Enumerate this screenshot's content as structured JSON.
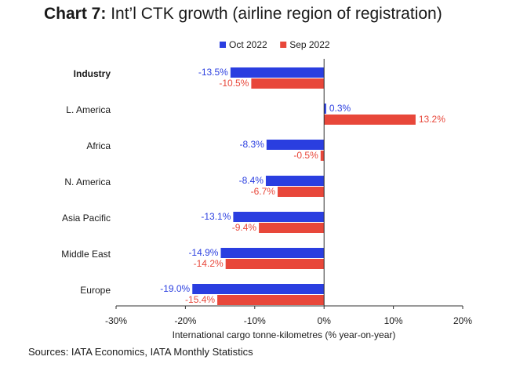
{
  "title_bold": "Chart 7:",
  "title_rest": "Int’l CTK growth (airline region of registration)",
  "source": "Sources: IATA Economics, IATA Monthly Statistics",
  "chart_data": {
    "type": "bar",
    "orientation": "horizontal",
    "categories": [
      "Industry",
      "L. America",
      "Africa",
      "N. America",
      "Asia Pacific",
      "Middle East",
      "Europe"
    ],
    "bold_categories": [
      "Industry"
    ],
    "series": [
      {
        "name": "Oct 2022",
        "color": "#2a3ee0",
        "values": [
          -13.5,
          0.3,
          -8.3,
          -8.4,
          -13.1,
          -14.9,
          -19.0
        ],
        "labels": [
          "-13.5%",
          "0.3%",
          "-8.3%",
          "-8.4%",
          "-13.1%",
          "-14.9%",
          "-19.0%"
        ]
      },
      {
        "name": "Sep 2022",
        "color": "#e8473a",
        "values": [
          -10.5,
          13.2,
          -0.5,
          -6.7,
          -9.4,
          -14.2,
          -15.4
        ],
        "labels": [
          "-10.5%",
          "13.2%",
          "-0.5%",
          "-6.7%",
          "-9.4%",
          "-14.2%",
          "-15.4%"
        ]
      }
    ],
    "xlim": [
      -30,
      20
    ],
    "xticks": [
      -30,
      -20,
      -10,
      0,
      10,
      20
    ],
    "xtick_labels": [
      "-30%",
      "-20%",
      "-10%",
      "0%",
      "10%",
      "20%"
    ],
    "xlabel": "International cargo tonne-kilometres (% year-on-year)",
    "legend_position": "top",
    "grid": false
  }
}
